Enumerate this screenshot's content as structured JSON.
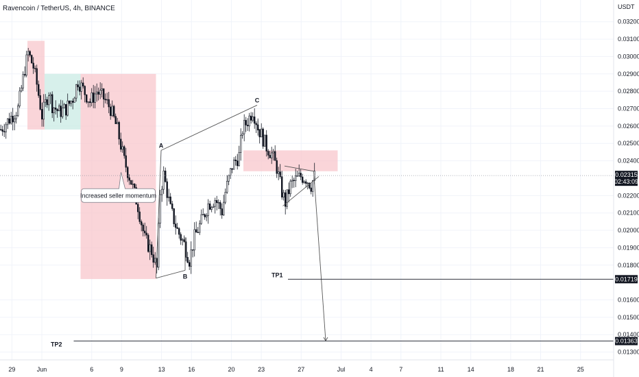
{
  "chart_data": {
    "type": "candlestick",
    "title": "Ravencoin / TetherUS, 4h, BINANCE",
    "currency": "USDT",
    "ylim": [
      0.01255,
      0.03325
    ],
    "xlim": [
      0,
      150
    ],
    "y_ticks": [
      "0.03200",
      "0.03100",
      "0.03000",
      "0.02900",
      "0.02800",
      "0.02700",
      "0.02600",
      "0.02500",
      "0.02400",
      "0.02200",
      "0.02100",
      "0.02000",
      "0.01900",
      "0.01800",
      "0.01600",
      "0.01500",
      "0.01400",
      "0.01300"
    ],
    "x_ticks": [
      {
        "label": "29",
        "day": 0
      },
      {
        "label": "Jun",
        "day": 3
      },
      {
        "label": "6",
        "day": 8
      },
      {
        "label": "9",
        "day": 11
      },
      {
        "label": "13",
        "day": 15
      },
      {
        "label": "16",
        "day": 18
      },
      {
        "label": "20",
        "day": 22
      },
      {
        "label": "23",
        "day": 25
      },
      {
        "label": "27",
        "day": 29
      },
      {
        "label": "Jul",
        "day": 33
      },
      {
        "label": "4",
        "day": 36
      },
      {
        "label": "7",
        "day": 39
      },
      {
        "label": "11",
        "day": 43
      },
      {
        "label": "14",
        "day": 46
      },
      {
        "label": "18",
        "day": 50
      },
      {
        "label": "21",
        "day": 53
      },
      {
        "label": "25",
        "day": 57
      }
    ],
    "current_price": {
      "value": "0.02315",
      "countdown": "02:43:09",
      "y": 0.02315
    },
    "price_anchors": [
      [
        0,
        0.0258
      ],
      [
        5,
        0.0264
      ],
      [
        10,
        0.027
      ],
      [
        14,
        0.0293
      ],
      [
        16,
        0.0302
      ],
      [
        19,
        0.0294
      ],
      [
        21,
        0.0284
      ],
      [
        24,
        0.0266
      ],
      [
        28,
        0.028
      ],
      [
        30,
        0.0272
      ],
      [
        34,
        0.0268
      ],
      [
        38,
        0.027
      ],
      [
        42,
        0.0276
      ],
      [
        45,
        0.0286
      ],
      [
        48,
        0.0281
      ],
      [
        52,
        0.0274
      ],
      [
        56,
        0.028
      ],
      [
        60,
        0.0276
      ],
      [
        64,
        0.027
      ],
      [
        68,
        0.0258
      ],
      [
        72,
        0.024
      ],
      [
        76,
        0.0228
      ],
      [
        80,
        0.0214
      ],
      [
        84,
        0.0195
      ],
      [
        88,
        0.0188
      ],
      [
        91,
        0.0178
      ],
      [
        93,
        0.0222
      ],
      [
        95,
        0.0232
      ],
      [
        99,
        0.0212
      ],
      [
        103,
        0.02
      ],
      [
        107,
        0.0192
      ],
      [
        110,
        0.0183
      ],
      [
        113,
        0.0196
      ],
      [
        117,
        0.0205
      ],
      [
        121,
        0.0215
      ],
      [
        125,
        0.0218
      ],
      [
        129,
        0.0211
      ],
      [
        131,
        0.0222
      ],
      [
        135,
        0.0237
      ],
      [
        139,
        0.0243
      ],
      [
        141,
        0.0258
      ],
      [
        144,
        0.0263
      ],
      [
        147,
        0.0269
      ],
      [
        150,
        0.026
      ]
    ],
    "overlay_candles": [
      [
        150,
        0.0259
      ],
      [
        152,
        0.0255
      ],
      [
        155,
        0.0248
      ],
      [
        158,
        0.0244
      ],
      [
        161,
        0.0236
      ],
      [
        164,
        0.0222
      ],
      [
        166,
        0.0216
      ],
      [
        169,
        0.0226
      ],
      [
        172,
        0.0229
      ],
      [
        175,
        0.0231
      ],
      [
        178,
        0.023
      ],
      [
        181,
        0.0226
      ],
      [
        183,
        0.0231
      ]
    ],
    "zones": [
      {
        "name": "red-zone-top",
        "color": "#f8c7cc",
        "x0": 16,
        "x1": 26,
        "y0": 0.0309,
        "y1": 0.0258
      },
      {
        "name": "green-zone",
        "color": "#c9ebe4",
        "x0": 26,
        "x1": 47,
        "y0": 0.029,
        "y1": 0.0258
      },
      {
        "name": "red-zone-big",
        "color": "#f8c7cc",
        "x0": 47,
        "x1": 91,
        "y0": 0.029,
        "y1": 0.0172
      },
      {
        "name": "red-zone-resistance",
        "color": "#f8c7cc",
        "x0": 142,
        "x1": 197,
        "y0": 0.0246,
        "y1": 0.0234
      }
    ],
    "pattern_points": [
      {
        "label": "A",
        "x": 94,
        "y": 0.0246
      },
      {
        "label": "B",
        "x": 108,
        "y": 0.0177
      },
      {
        "label": "C",
        "x": 150,
        "y": 0.0272
      }
    ],
    "pattern_lines": [
      {
        "x0": 91,
        "y0": 0.01725,
        "x1": 108,
        "y1": 0.0177
      },
      {
        "x0": 94,
        "y0": 0.0246,
        "x1": 150,
        "y1": 0.0272
      },
      {
        "x0": 91,
        "y0": 0.01725,
        "x1": 94,
        "y1": 0.0246
      },
      {
        "x0": 108,
        "y0": 0.0177,
        "x1": 108,
        "y1": 0.0196
      }
    ],
    "triangle": [
      {
        "x0": 166,
        "y0": 0.0237,
        "x1": 183,
        "y1": 0.0234
      },
      {
        "x0": 165,
        "y0": 0.0214,
        "x1": 186,
        "y1": 0.0231
      }
    ],
    "projection_arrow": {
      "x0": 183,
      "y0": 0.0234,
      "x1": 190,
      "y1": 0.01365
    },
    "targets": [
      {
        "label": "TP1",
        "value": "0.01719",
        "y": 0.01719,
        "x0": 164
      },
      {
        "label": "TP2",
        "value": "0.01363",
        "y": 0.01363,
        "x0": 39
      }
    ],
    "callout": {
      "text": "Increased seller momentum",
      "x": 39,
      "y": 0.0222
    },
    "colors": {
      "up": "#131722",
      "down": "#131722",
      "grid": "#f0f3fa",
      "line": "#555555",
      "tag_bg": "#131722",
      "price_line": "#9598a1"
    }
  }
}
